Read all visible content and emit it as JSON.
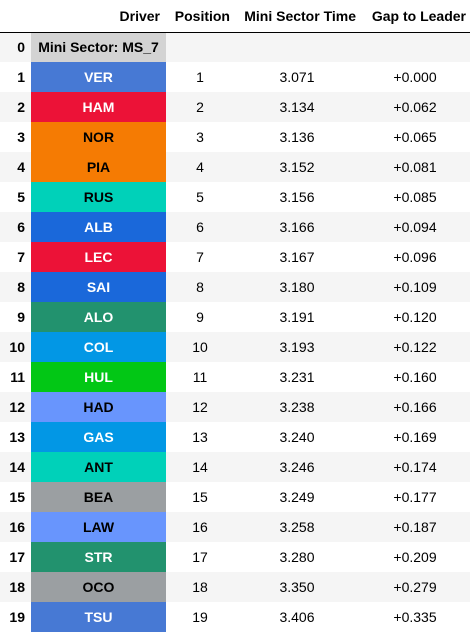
{
  "columns": {
    "index": "",
    "driver": "Driver",
    "position": "Position",
    "time": "Mini Sector Time",
    "gap": "Gap to Leader"
  },
  "header_row": {
    "index": "0",
    "label": "Mini Sector: MS_7",
    "bg": "#d3d3d3",
    "fg": "#000000"
  },
  "rows": [
    {
      "index": "1",
      "driver": "VER",
      "position": "1",
      "time": "3.071",
      "gap": "+0.000",
      "bg": "#4779d4",
      "fg": "#ffffff"
    },
    {
      "index": "2",
      "driver": "HAM",
      "position": "2",
      "time": "3.134",
      "gap": "+0.062",
      "bg": "#ec1237",
      "fg": "#ffffff"
    },
    {
      "index": "3",
      "driver": "NOR",
      "position": "3",
      "time": "3.136",
      "gap": "+0.065",
      "bg": "#f57b03",
      "fg": "#000000"
    },
    {
      "index": "4",
      "driver": "PIA",
      "position": "4",
      "time": "3.152",
      "gap": "+0.081",
      "bg": "#f57b03",
      "fg": "#000000"
    },
    {
      "index": "5",
      "driver": "RUS",
      "position": "5",
      "time": "3.156",
      "gap": "+0.085",
      "bg": "#00d1b9",
      "fg": "#000000"
    },
    {
      "index": "6",
      "driver": "ALB",
      "position": "6",
      "time": "3.166",
      "gap": "+0.094",
      "bg": "#1a68da",
      "fg": "#ffffff"
    },
    {
      "index": "7",
      "driver": "LEC",
      "position": "7",
      "time": "3.167",
      "gap": "+0.096",
      "bg": "#ec1237",
      "fg": "#ffffff"
    },
    {
      "index": "8",
      "driver": "SAI",
      "position": "8",
      "time": "3.180",
      "gap": "+0.109",
      "bg": "#1a68da",
      "fg": "#ffffff"
    },
    {
      "index": "9",
      "driver": "ALO",
      "position": "9",
      "time": "3.191",
      "gap": "+0.120",
      "bg": "#22926e",
      "fg": "#ffffff"
    },
    {
      "index": "10",
      "driver": "COL",
      "position": "10",
      "time": "3.193",
      "gap": "+0.122",
      "bg": "#0297e5",
      "fg": "#ffffff"
    },
    {
      "index": "11",
      "driver": "HUL",
      "position": "11",
      "time": "3.231",
      "gap": "+0.160",
      "bg": "#02c715",
      "fg": "#ffffff"
    },
    {
      "index": "12",
      "driver": "HAD",
      "position": "12",
      "time": "3.238",
      "gap": "+0.166",
      "bg": "#6895fd",
      "fg": "#000000"
    },
    {
      "index": "13",
      "driver": "GAS",
      "position": "13",
      "time": "3.240",
      "gap": "+0.169",
      "bg": "#0297e5",
      "fg": "#ffffff"
    },
    {
      "index": "14",
      "driver": "ANT",
      "position": "14",
      "time": "3.246",
      "gap": "+0.174",
      "bg": "#00d1b9",
      "fg": "#000000"
    },
    {
      "index": "15",
      "driver": "BEA",
      "position": "15",
      "time": "3.249",
      "gap": "+0.177",
      "bg": "#9b9fa2",
      "fg": "#000000"
    },
    {
      "index": "16",
      "driver": "LAW",
      "position": "16",
      "time": "3.258",
      "gap": "+0.187",
      "bg": "#6895fd",
      "fg": "#000000"
    },
    {
      "index": "17",
      "driver": "STR",
      "position": "17",
      "time": "3.280",
      "gap": "+0.209",
      "bg": "#22926e",
      "fg": "#ffffff"
    },
    {
      "index": "18",
      "driver": "OCO",
      "position": "18",
      "time": "3.350",
      "gap": "+0.279",
      "bg": "#9b9fa2",
      "fg": "#000000"
    },
    {
      "index": "19",
      "driver": "TSU",
      "position": "19",
      "time": "3.406",
      "gap": "+0.335",
      "bg": "#4779d4",
      "fg": "#ffffff"
    }
  ]
}
